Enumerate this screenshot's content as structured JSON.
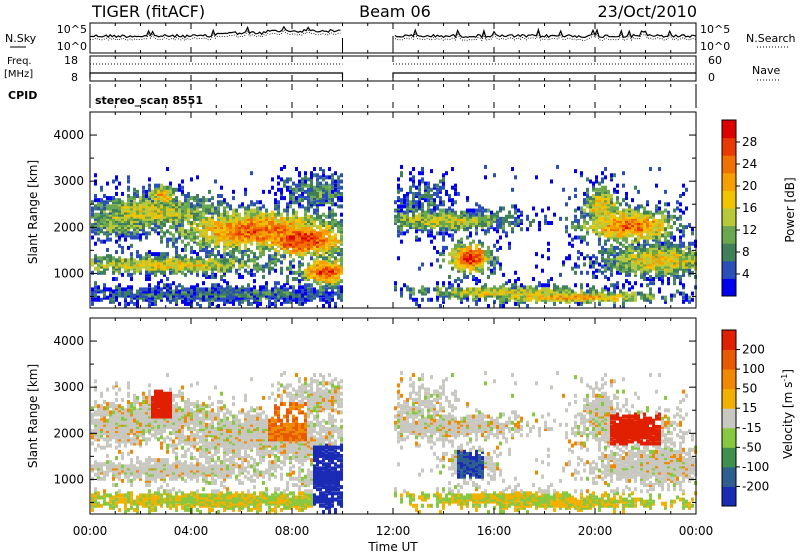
{
  "header": {
    "radar": "TIGER (fitACF)",
    "beam": "Beam 06",
    "date": "23/Oct/2010"
  },
  "strips": {
    "nsky_label": "N.Sky",
    "nsky_ticks": [
      "10^5",
      "10^0"
    ],
    "nsearch_label": "N.Search",
    "nsearch_ticks": [
      "10^5",
      "10^0"
    ],
    "freq_label": "Freq.",
    "freq_unit": "[MHz]",
    "freq_ticks": [
      "18",
      "8"
    ],
    "nave_label": "Nave",
    "nave_ticks": [
      "60",
      "0"
    ],
    "cpid_label": "CPID",
    "cpid_value": "stereo_scan 8551"
  },
  "chart_data": [
    {
      "type": "heatmap",
      "name": "power",
      "ylabel": "Slant Range [km]",
      "yticks": [
        1000,
        2000,
        3000,
        4000
      ],
      "ylim": [
        250,
        4500
      ],
      "xlim": [
        0,
        24
      ],
      "colorbar": {
        "label": "Power [dB]",
        "ticks": [
          "28",
          "24",
          "20",
          "16",
          "12",
          "8",
          "4"
        ],
        "colors": [
          "#0000ee",
          "#2b4fb8",
          "#3f7f5a",
          "#6aa84f",
          "#b7c93a",
          "#f2c400",
          "#f5a000",
          "#f07000",
          "#e83a00",
          "#dd0000"
        ]
      },
      "data_gap_hours": [
        10,
        12
      ]
    },
    {
      "type": "heatmap",
      "name": "velocity",
      "ylabel": "Slant Range [km]",
      "yticks": [
        1000,
        2000,
        3000,
        4000
      ],
      "ylim": [
        250,
        4500
      ],
      "xlim": [
        0,
        24
      ],
      "colorbar": {
        "label": "Velocity [m s",
        "label_sup": "-1",
        "label_end": "]",
        "ticks": [
          "200",
          "100",
          "50",
          "15",
          "-15",
          "-50",
          "-100",
          "-200"
        ],
        "colors": [
          "#1a2bb5",
          "#2f5f8f",
          "#3f8f4f",
          "#88c840",
          "#c8c8c0",
          "#f2b000",
          "#f08800",
          "#e85a00",
          "#e02000"
        ]
      },
      "data_gap_hours": [
        10,
        12
      ]
    }
  ],
  "xaxis": {
    "ticks": [
      "00:00",
      "04:00",
      "08:00",
      "12:00",
      "16:00",
      "20:00",
      "00:00"
    ],
    "label": "Time UT"
  }
}
